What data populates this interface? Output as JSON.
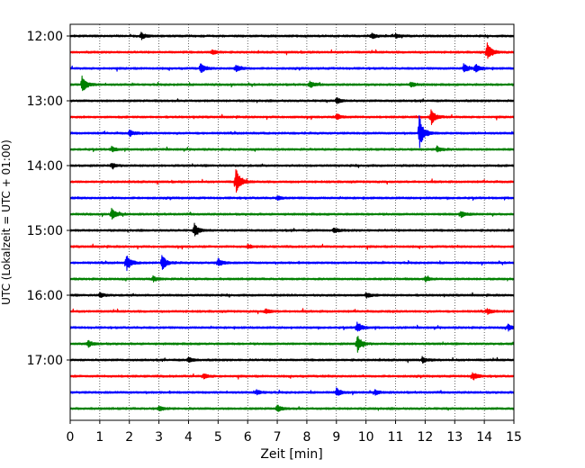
{
  "chart_data": {
    "type": "line",
    "title": "",
    "xlabel": "Zeit  [min]",
    "ylabel": "UTC (Lokalzeit = UTC + 01:00)",
    "xlim": [
      0,
      15
    ],
    "x_ticks": [
      "0",
      "1",
      "2",
      "3",
      "4",
      "5",
      "6",
      "7",
      "8",
      "9",
      "10",
      "11",
      "12",
      "13",
      "14",
      "15"
    ],
    "y_ticks": [
      "12:00",
      "13:00",
      "14:00",
      "15:00",
      "16:00",
      "17:00"
    ],
    "grid": "vertical-dotted",
    "trace_interval_min": 15,
    "colors": [
      "#000000",
      "#ff0000",
      "#0000ff",
      "#008000"
    ],
    "series": [
      {
        "start": "12:00",
        "color": "#000000",
        "events": [
          {
            "t": 2.4,
            "amp": 0.4
          },
          {
            "t": 10.2,
            "amp": 0.3
          },
          {
            "t": 11.0,
            "amp": 0.3
          }
        ]
      },
      {
        "start": "12:15",
        "color": "#ff0000",
        "events": [
          {
            "t": 4.8,
            "amp": 0.3
          },
          {
            "t": 14.1,
            "amp": 1.2
          }
        ]
      },
      {
        "start": "12:30",
        "color": "#0000ff",
        "events": [
          {
            "t": 4.4,
            "amp": 0.6
          },
          {
            "t": 5.6,
            "amp": 0.5
          },
          {
            "t": 13.3,
            "amp": 0.6
          },
          {
            "t": 13.7,
            "amp": 0.5
          }
        ]
      },
      {
        "start": "12:45",
        "color": "#008000",
        "events": [
          {
            "t": 0.4,
            "amp": 1.1
          },
          {
            "t": 8.1,
            "amp": 0.4
          },
          {
            "t": 11.5,
            "amp": 0.3
          }
        ]
      },
      {
        "start": "13:00",
        "color": "#000000",
        "events": [
          {
            "t": 9.0,
            "amp": 0.4
          }
        ]
      },
      {
        "start": "13:15",
        "color": "#ff0000",
        "events": [
          {
            "t": 9.0,
            "amp": 0.4
          },
          {
            "t": 12.2,
            "amp": 1.0
          }
        ]
      },
      {
        "start": "13:30",
        "color": "#0000ff",
        "events": [
          {
            "t": 2.0,
            "amp": 0.4
          },
          {
            "t": 11.8,
            "amp": 2.2
          }
        ]
      },
      {
        "start": "13:45",
        "color": "#008000",
        "events": [
          {
            "t": 1.4,
            "amp": 0.3
          },
          {
            "t": 12.4,
            "amp": 0.4
          }
        ]
      },
      {
        "start": "14:00",
        "color": "#000000",
        "events": [
          {
            "t": 1.4,
            "amp": 0.3
          }
        ]
      },
      {
        "start": "14:15",
        "color": "#ff0000",
        "events": [
          {
            "t": 5.6,
            "amp": 1.7
          }
        ]
      },
      {
        "start": "14:30",
        "color": "#0000ff",
        "events": [
          {
            "t": 7.0,
            "amp": 0.2
          }
        ]
      },
      {
        "start": "14:45",
        "color": "#008000",
        "events": [
          {
            "t": 1.4,
            "amp": 0.7
          },
          {
            "t": 13.2,
            "amp": 0.4
          }
        ]
      },
      {
        "start": "15:00",
        "color": "#000000",
        "events": [
          {
            "t": 4.2,
            "amp": 0.8
          },
          {
            "t": 8.9,
            "amp": 0.3
          }
        ]
      },
      {
        "start": "15:15",
        "color": "#ff0000",
        "events": [
          {
            "t": 6.0,
            "amp": 0.2
          }
        ]
      },
      {
        "start": "15:30",
        "color": "#0000ff",
        "events": [
          {
            "t": 1.9,
            "amp": 1.0
          },
          {
            "t": 3.1,
            "amp": 1.0
          },
          {
            "t": 5.0,
            "amp": 0.5
          }
        ]
      },
      {
        "start": "15:45",
        "color": "#008000",
        "events": [
          {
            "t": 2.8,
            "amp": 0.3
          },
          {
            "t": 12.0,
            "amp": 0.3
          }
        ]
      },
      {
        "start": "16:00",
        "color": "#000000",
        "events": [
          {
            "t": 1.0,
            "amp": 0.3
          },
          {
            "t": 10.0,
            "amp": 0.3
          }
        ]
      },
      {
        "start": "16:15",
        "color": "#ff0000",
        "events": [
          {
            "t": 6.6,
            "amp": 0.3
          },
          {
            "t": 14.1,
            "amp": 0.3
          }
        ]
      },
      {
        "start": "16:30",
        "color": "#0000ff",
        "events": [
          {
            "t": 9.7,
            "amp": 0.7
          },
          {
            "t": 14.8,
            "amp": 0.4
          }
        ]
      },
      {
        "start": "16:45",
        "color": "#008000",
        "events": [
          {
            "t": 0.6,
            "amp": 0.4
          },
          {
            "t": 9.7,
            "amp": 1.1
          }
        ]
      },
      {
        "start": "17:00",
        "color": "#000000",
        "events": [
          {
            "t": 4.0,
            "amp": 0.3
          },
          {
            "t": 11.9,
            "amp": 0.3
          }
        ]
      },
      {
        "start": "17:15",
        "color": "#ff0000",
        "events": [
          {
            "t": 4.5,
            "amp": 0.3
          },
          {
            "t": 13.6,
            "amp": 0.5
          }
        ]
      },
      {
        "start": "17:30",
        "color": "#0000ff",
        "events": [
          {
            "t": 6.3,
            "amp": 0.3
          },
          {
            "t": 9.0,
            "amp": 0.5
          },
          {
            "t": 10.3,
            "amp": 0.3
          }
        ]
      },
      {
        "start": "17:45",
        "color": "#008000",
        "events": [
          {
            "t": 3.0,
            "amp": 0.3
          },
          {
            "t": 7.0,
            "amp": 0.4
          }
        ]
      }
    ]
  }
}
